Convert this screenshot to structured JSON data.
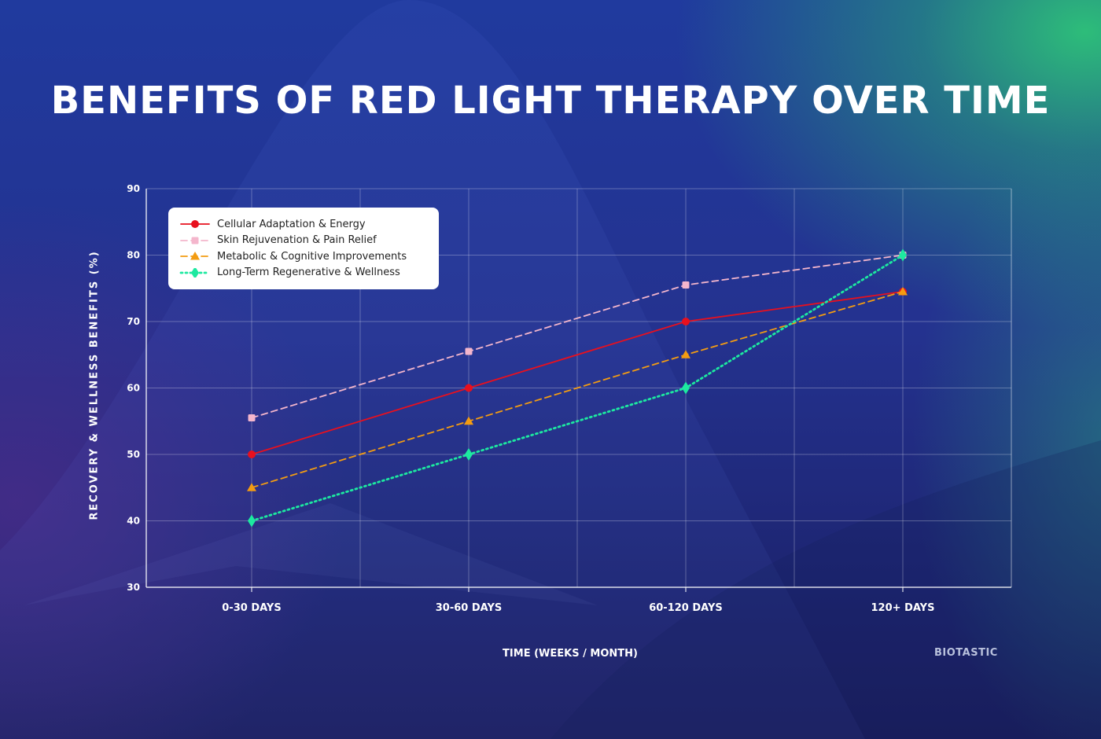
{
  "title": "BENEFITS OF RED LIGHT THERAPY OVER TIME",
  "brand": "BIOTASTIC",
  "colors": {
    "background": "#243296",
    "accent_green": "#2ec478",
    "series_red": "#e8101e",
    "series_pink": "#f4b6cc",
    "series_orange": "#f39c12",
    "series_green": "#1de9a0"
  },
  "chart_data": {
    "type": "line",
    "title": "BENEFITS OF RED LIGHT THERAPY OVER TIME",
    "xlabel": "TIME (WEEKS / MONTH)",
    "ylabel": "RECOVERY & WELLNESS BENEFITS (%)",
    "categories": [
      "0-30 DAYS",
      "30-60 DAYS",
      "60-120 DAYS",
      "120+ DAYS"
    ],
    "ylim": [
      30,
      90
    ],
    "yticks": [
      30,
      40,
      50,
      60,
      70,
      80,
      90
    ],
    "grid": true,
    "legend_position": "top-left",
    "series": [
      {
        "name": "Cellular Adaptation & Energy",
        "values": [
          50,
          60,
          70,
          74.5
        ],
        "color": "#e8101e",
        "line": "solid",
        "marker": "circle"
      },
      {
        "name": "Skin Rejuvenation & Pain Relief",
        "values": [
          55.5,
          65.5,
          75.5,
          80
        ],
        "color": "#f4b6cc",
        "line": "dashed",
        "marker": "square"
      },
      {
        "name": "Metabolic & Cognitive Improvements",
        "values": [
          45,
          55,
          65,
          74.5
        ],
        "color": "#f39c12",
        "line": "dashed",
        "marker": "triangle"
      },
      {
        "name": "Long-Term Regenerative & Wellness",
        "values": [
          40,
          50,
          60,
          80
        ],
        "color": "#1de9a0",
        "line": "dotted",
        "marker": "diamond"
      }
    ]
  }
}
